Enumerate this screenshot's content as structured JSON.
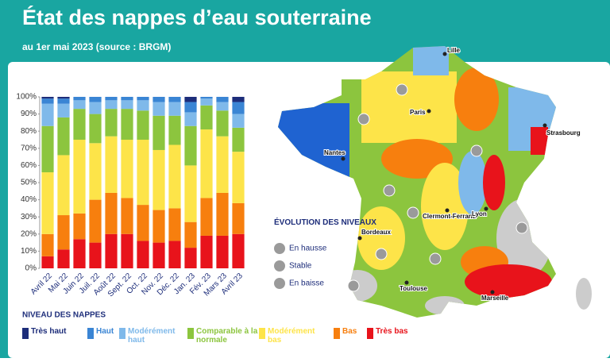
{
  "chart_data": {
    "type": "bar",
    "stacked": true,
    "title": "État des nappes d’eau souterraine",
    "subtitle": "au 1er mai 2023 (source : BRGM)",
    "legend_title": "NIVEAU DES NAPPES",
    "categories": [
      "Avril 22",
      "Mai 22",
      "Juin 22",
      "Juil. 22",
      "Août 22",
      "Sept. 22",
      "Oct. 22",
      "Nov. 22",
      "Déc. 22",
      "Jan. 23",
      "Fév. 23",
      "Mars 23",
      "Avril 23"
    ],
    "series": [
      {
        "name": "Très bas",
        "color": "#e8131b",
        "values": [
          7,
          11,
          17,
          15,
          20,
          20,
          16,
          15,
          16,
          12,
          19,
          19,
          20
        ]
      },
      {
        "name": "Bas",
        "color": "#f77f0e",
        "values": [
          13,
          20,
          15,
          25,
          24,
          21,
          21,
          19,
          19,
          15,
          22,
          25,
          18
        ]
      },
      {
        "name": "Modérément bas",
        "color": "#fde449",
        "values": [
          36,
          35,
          43,
          33,
          33,
          34,
          38,
          35,
          37,
          33,
          40,
          33,
          30
        ]
      },
      {
        "name": "Comparable à la normale",
        "color": "#8cc53e",
        "values": [
          27,
          22,
          18,
          17,
          16,
          18,
          17,
          20,
          17,
          23,
          14,
          15,
          14
        ]
      },
      {
        "name": "Modérément haut",
        "color": "#7fb9ea",
        "values": [
          13,
          8,
          5,
          7,
          5,
          5,
          6,
          8,
          8,
          8,
          4,
          5,
          8
        ]
      },
      {
        "name": "Haut",
        "color": "#3a85d4",
        "values": [
          3,
          3,
          2,
          3,
          2,
          2,
          2,
          3,
          3,
          6,
          1,
          3,
          7
        ]
      },
      {
        "name": "Très haut",
        "color": "#1d2d7a",
        "values": [
          1,
          1,
          0,
          0,
          0,
          0,
          0,
          0,
          0,
          3,
          0,
          0,
          3
        ]
      }
    ],
    "ylim": [
      0,
      100
    ],
    "yticks": [
      {
        "value": 0,
        "label": "0%"
      },
      {
        "value": 10,
        "label": "10%"
      },
      {
        "value": 20,
        "label": "20%"
      },
      {
        "value": 30,
        "label": "30%"
      },
      {
        "value": 40,
        "label": "40%"
      },
      {
        "value": 50,
        "label": "50%"
      },
      {
        "value": 60,
        "label": "60%"
      },
      {
        "value": 70,
        "label": "70%"
      },
      {
        "value": 80,
        "label": "80%"
      },
      {
        "value": 90,
        "label": "90%"
      },
      {
        "value": 100,
        "label": "100%"
      }
    ]
  },
  "map": {
    "legend_title": "ÉVOLUTION DES NIVEAUX",
    "legend": [
      "En hausse",
      "Stable",
      "En baisse"
    ],
    "cities": [
      "Lille",
      "Paris",
      "Strasbourg",
      "Nantes",
      "Clermont-Ferrand",
      "Lyon",
      "Bordeaux",
      "Toulouse",
      "Marseille"
    ]
  }
}
